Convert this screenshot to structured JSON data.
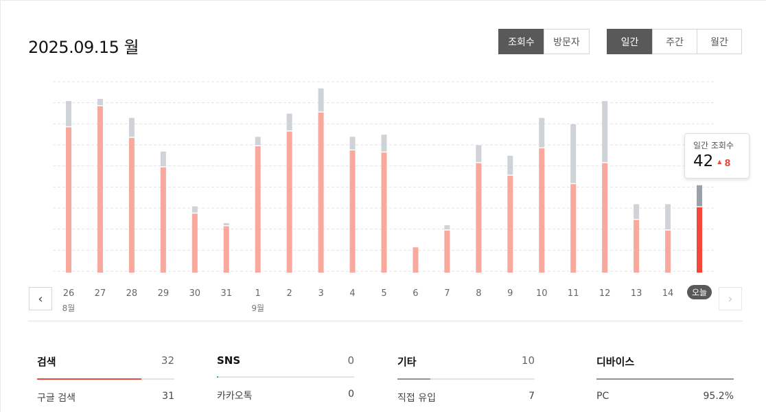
{
  "header": {
    "date_title": "2025.09.15 월"
  },
  "metric_toggle": {
    "options": [
      "조회수",
      "방문자"
    ],
    "selected": "조회수"
  },
  "period_toggle": {
    "options": [
      "일간",
      "주간",
      "월간"
    ],
    "selected": "일간"
  },
  "chart_data": {
    "type": "bar",
    "categories": [
      "26",
      "27",
      "28",
      "29",
      "30",
      "31",
      "1",
      "2",
      "3",
      "4",
      "5",
      "6",
      "7",
      "8",
      "9",
      "10",
      "11",
      "12",
      "13",
      "14",
      "오늘"
    ],
    "month_labels": [
      {
        "at": "26",
        "label": "8월"
      },
      {
        "at": "1",
        "label": "9월"
      }
    ],
    "series": [
      {
        "values": [
          69,
          79,
          64,
          50,
          28,
          22,
          60,
          67,
          76,
          58,
          57,
          12,
          20,
          52,
          46,
          59,
          42,
          52,
          25,
          20,
          31
        ],
        "color": "#f9a89e"
      },
      {
        "values": [
          12,
          3,
          9,
          7,
          3,
          1,
          4,
          8,
          11,
          6,
          8,
          0,
          2,
          8,
          9,
          14,
          28,
          29,
          7,
          12,
          10
        ],
        "color": "#cfd3d7"
      }
    ],
    "today_colors": {
      "primary": "#f4473a",
      "secondary": "#9aa1a9"
    },
    "ylim": [
      0,
      90
    ],
    "grid": true
  },
  "tooltip": {
    "label": "일간 조회수",
    "value": "42",
    "delta": "8"
  },
  "today_badge": "오늘",
  "nav": {
    "prev_icon": "chevron-left-icon",
    "next_icon": "chevron-right-icon"
  },
  "stats": [
    {
      "label": "검색",
      "value": "32",
      "fill_pct": 76,
      "color": "#e9493c",
      "row_label": "구글 검색",
      "row_value": "31"
    },
    {
      "label": "SNS",
      "value": "0",
      "fill_pct": 1,
      "color": "#1bb37a",
      "row_label": "카카오톡",
      "row_value": "0"
    },
    {
      "label": "기타",
      "value": "10",
      "fill_pct": 24,
      "color": "#8d949c",
      "row_label": "직접 유입",
      "row_value": "7"
    },
    {
      "label": "디바이스",
      "value": "",
      "fill_pct": 100,
      "color": "#8d949c",
      "row_label": "PC",
      "row_value": "95.2%"
    }
  ]
}
